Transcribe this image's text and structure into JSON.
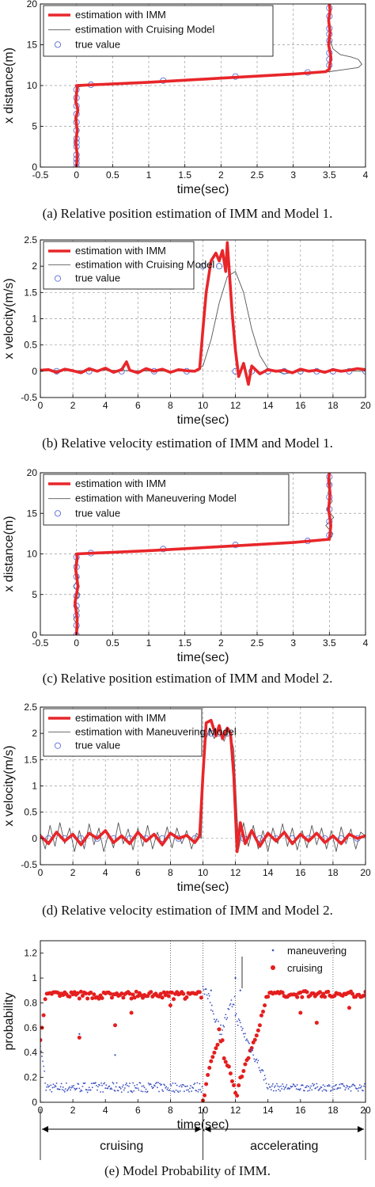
{
  "chart_data": [
    {
      "type": "line",
      "caption": "(a) Relative position estimation of IMM and Model 1.",
      "xlabel": "time(sec)",
      "ylabel": "x distance(m)",
      "xlim": [
        -0.5,
        4
      ],
      "ylim": [
        0,
        20
      ],
      "xticks": [
        -0.5,
        0,
        0.5,
        1,
        1.5,
        2,
        2.5,
        3,
        3.5,
        4
      ],
      "yticks": [
        0,
        5,
        10,
        15,
        20
      ],
      "grid": true,
      "legend": "top-left",
      "series": [
        {
          "name": "estimation with IMM",
          "color": "#e8262a",
          "style": "thick-line",
          "x": [
            0,
            0.01,
            -0.01,
            0.01,
            -0.01,
            0.02,
            -0.01,
            0.0,
            0.01,
            0.0,
            1.0,
            2.0,
            3.0,
            3.45,
            3.5,
            3.52,
            3.49,
            3.51,
            3.49,
            3.51,
            3.5
          ],
          "y": [
            0,
            1.5,
            3,
            4.5,
            6,
            7,
            8,
            9,
            9.8,
            10.0,
            10.4,
            10.9,
            11.4,
            11.7,
            12.0,
            13.5,
            15,
            16.5,
            18,
            19.2,
            20
          ]
        },
        {
          "name": "estimation with Cruising Model",
          "color": "#555555",
          "style": "thin-line",
          "x": [
            0,
            0.01,
            0.0,
            0.2,
            1.0,
            2.0,
            3.0,
            3.5,
            3.7,
            3.9,
            3.95,
            3.9,
            3.8,
            3.65,
            3.55,
            3.5,
            3.5
          ],
          "y": [
            0,
            5,
            9.8,
            10.05,
            10.4,
            10.9,
            11.4,
            11.7,
            11.95,
            12.2,
            12.6,
            13.2,
            13.5,
            13.8,
            14.5,
            16,
            20
          ]
        },
        {
          "name": "true value",
          "color": "#5b6fd6",
          "style": "circle",
          "x": [
            0,
            0,
            0,
            0,
            0,
            0,
            0,
            0,
            0,
            0,
            0,
            0,
            0,
            0.2,
            1.2,
            2.2,
            3.2,
            3.5,
            3.5,
            3.5,
            3.5,
            3.5,
            3.5,
            3.5,
            3.5
          ],
          "y": [
            0,
            1.5,
            3,
            4.5,
            5.5,
            6.5,
            7.5,
            8.5,
            9.5,
            2.5,
            3.5,
            1,
            0.5,
            10.1,
            10.6,
            11.1,
            11.6,
            12.5,
            14,
            15.5,
            17,
            18.5,
            19.5,
            16.3,
            13.2
          ]
        }
      ]
    },
    {
      "type": "line",
      "caption": "(b) Relative velocity estimation of IMM and Model 1.",
      "xlabel": "time(sec)",
      "ylabel": "x velocity(m/s)",
      "xlim": [
        0,
        20
      ],
      "ylim": [
        -0.5,
        2.5
      ],
      "xticks": [
        0,
        2,
        4,
        6,
        8,
        10,
        12,
        14,
        16,
        18,
        20
      ],
      "yticks": [
        -0.5,
        0,
        0.5,
        1,
        1.5,
        2,
        2.5
      ],
      "grid": true,
      "legend": "top-left",
      "series": [
        {
          "name": "estimation with IMM",
          "color": "#e8262a",
          "style": "thick-line",
          "x": [
            0,
            0.5,
            1,
            1.5,
            2,
            2.5,
            3,
            3.5,
            4,
            4.5,
            5,
            5.3,
            5.5,
            6,
            6.5,
            7,
            7.5,
            8,
            8.5,
            9,
            9.5,
            9.8,
            10,
            10.2,
            10.5,
            10.8,
            11,
            11.2,
            11.4,
            11.5,
            11.6,
            11.8,
            12,
            12.2,
            12.5,
            12.8,
            13,
            13.5,
            14,
            14.5,
            15,
            15.5,
            16,
            16.5,
            17,
            17.5,
            18,
            18.5,
            19,
            19.5,
            20
          ],
          "y": [
            0.02,
            0.03,
            -0.02,
            0.04,
            0.01,
            -0.03,
            0.05,
            0.0,
            0.06,
            -0.02,
            0.03,
            0.18,
            0.02,
            -0.03,
            0.05,
            0.0,
            0.04,
            -0.02,
            0.03,
            0.01,
            0.0,
            0.05,
            0.8,
            1.5,
            2.1,
            2.25,
            2.1,
            2.3,
            1.9,
            2.45,
            2.0,
            1.1,
            0.4,
            -0.1,
            0.15,
            -0.25,
            0.1,
            -0.05,
            0.03,
            0.0,
            0.02,
            -0.03,
            0.04,
            0.0,
            0.02,
            -0.02,
            0.03,
            0.0,
            0.02,
            0.05,
            0.03
          ]
        },
        {
          "name": "estimation with Cruising Model",
          "color": "#555555",
          "style": "thin-line",
          "x": [
            0,
            2,
            4,
            6,
            8,
            9.5,
            10,
            10.5,
            11,
            11.5,
            12,
            12.5,
            13,
            13.5,
            14,
            15,
            16,
            18,
            20
          ],
          "y": [
            0.02,
            0.01,
            0.02,
            0.01,
            0.0,
            0.02,
            0.1,
            0.6,
            1.3,
            1.8,
            1.9,
            1.5,
            0.8,
            0.3,
            0.05,
            -0.05,
            0.0,
            0.01,
            0.0
          ]
        },
        {
          "name": "true value",
          "color": "#5b6fd6",
          "style": "circle",
          "x": [
            1,
            3,
            5,
            7,
            9,
            10,
            11,
            12,
            13,
            14,
            15,
            16,
            17,
            18,
            19,
            20
          ],
          "y": [
            0,
            0,
            0,
            0,
            0,
            2,
            2,
            0,
            0,
            0,
            0,
            0,
            0,
            0,
            0,
            0
          ]
        }
      ]
    },
    {
      "type": "line",
      "caption": "(c) Relative position estimation of IMM and Model 2.",
      "xlabel": "time(sec)",
      "ylabel": "x distance(m)",
      "xlim": [
        -0.5,
        4
      ],
      "ylim": [
        0,
        20
      ],
      "xticks": [
        -0.5,
        0,
        0.5,
        1,
        1.5,
        2,
        2.5,
        3,
        3.5,
        4
      ],
      "yticks": [
        0,
        5,
        10,
        15,
        20
      ],
      "grid": true,
      "legend": "top-left",
      "series": [
        {
          "name": "estimation with IMM",
          "color": "#e8262a",
          "style": "thick-line",
          "x": [
            0,
            0.01,
            -0.02,
            0.02,
            -0.01,
            0.01,
            0.0,
            1.0,
            2.0,
            3.0,
            3.5,
            3.52,
            3.49,
            3.51,
            3.49,
            3.5
          ],
          "y": [
            0,
            2,
            4,
            6,
            8,
            9.5,
            10.0,
            10.4,
            10.9,
            11.4,
            11.8,
            13.5,
            15.5,
            17.5,
            19,
            20
          ]
        },
        {
          "name": "estimation with Maneuvering Model",
          "color": "#555555",
          "style": "thin-line",
          "x": [
            0,
            0.03,
            -0.04,
            0.04,
            -0.03,
            0.05,
            -0.04,
            0.03,
            -0.02,
            0.0,
            1.0,
            2.0,
            3.0,
            3.5,
            3.55,
            3.45,
            3.56,
            3.46,
            3.54,
            3.48,
            3.52,
            3.5
          ],
          "y": [
            0,
            1,
            2,
            3,
            4,
            5,
            6,
            7,
            8.5,
            10.0,
            10.4,
            10.9,
            11.4,
            11.8,
            12.5,
            13.5,
            14.5,
            15.5,
            16.5,
            17.5,
            18.5,
            20
          ]
        },
        {
          "name": "true value",
          "color": "#5b6fd6",
          "style": "circle",
          "x": [
            0,
            0,
            0,
            0,
            0,
            0,
            0,
            0,
            0,
            0.2,
            1.2,
            2.2,
            3.2,
            3.5,
            3.5,
            3.5,
            3.5,
            3.5,
            3.5
          ],
          "y": [
            0,
            1.2,
            2.4,
            3.6,
            4.8,
            6,
            7.2,
            8.4,
            9.6,
            10.1,
            10.6,
            11.1,
            11.6,
            12.3,
            14,
            15.5,
            17,
            18.5,
            19.5
          ]
        }
      ]
    },
    {
      "type": "line",
      "caption": "(d) Relative velocity estimation of IMM and Model 2.",
      "xlabel": "time(sec)",
      "ylabel": "x velocity(m/s)",
      "xlim": [
        0,
        20
      ],
      "ylim": [
        -0.5,
        2.5
      ],
      "xticks": [
        0,
        2,
        4,
        6,
        8,
        10,
        12,
        14,
        16,
        18,
        20
      ],
      "yticks": [
        -0.5,
        0,
        0.5,
        1,
        1.5,
        2,
        2.5
      ],
      "grid": true,
      "legend": "top-left",
      "series": [
        {
          "name": "estimation with IMM",
          "color": "#e8262a",
          "style": "thick-line",
          "x": [
            0,
            0.5,
            1,
            1.5,
            2,
            2.5,
            3,
            3.5,
            4,
            4.5,
            5,
            5.5,
            6,
            6.5,
            7,
            7.5,
            8,
            8.5,
            9,
            9.5,
            9.8,
            10,
            10.2,
            10.5,
            10.8,
            11,
            11.2,
            11.5,
            11.7,
            11.9,
            12.1,
            12.3,
            12.6,
            13,
            13.5,
            14,
            14.5,
            15,
            15.5,
            16,
            16.5,
            17,
            17.5,
            18,
            18.5,
            19,
            19.5,
            20
          ],
          "y": [
            0.05,
            -0.1,
            0.12,
            -0.05,
            0.08,
            -0.12,
            0.1,
            0.0,
            0.15,
            -0.08,
            0.05,
            -0.1,
            0.12,
            -0.05,
            0.08,
            -0.12,
            0.1,
            0.0,
            0.06,
            -0.08,
            0.05,
            1.2,
            2.2,
            2.25,
            1.95,
            2.15,
            1.9,
            2.1,
            2.0,
            1.2,
            -0.25,
            0.3,
            -0.1,
            0.15,
            -0.15,
            0.1,
            -0.05,
            0.12,
            -0.1,
            0.08,
            -0.05,
            0.1,
            -0.08,
            0.05,
            -0.1,
            0.08,
            0.0,
            0.05
          ]
        },
        {
          "name": "estimation with Maneuvering Model",
          "color": "#555555",
          "style": "thin-line",
          "x": [
            0,
            0.3,
            0.6,
            0.9,
            1.2,
            1.5,
            1.8,
            2.1,
            2.4,
            2.7,
            3,
            3.3,
            3.6,
            3.9,
            4.2,
            4.5,
            4.8,
            5.1,
            5.4,
            5.7,
            6,
            6.3,
            6.6,
            6.9,
            7.2,
            7.5,
            7.8,
            8.1,
            8.4,
            8.7,
            9,
            9.3,
            9.6,
            9.9,
            10.1,
            10.4,
            10.7,
            11,
            11.3,
            11.6,
            11.9,
            12.2,
            12.5,
            12.8,
            13.1,
            13.4,
            13.7,
            14,
            14.3,
            14.6,
            14.9,
            15.2,
            15.5,
            15.8,
            16.1,
            16.4,
            16.7,
            17,
            17.3,
            17.6,
            17.9,
            18.2,
            18.5,
            18.8,
            19.1,
            19.4,
            19.7,
            20
          ],
          "y": [
            0.1,
            -0.2,
            0.25,
            -0.15,
            0.3,
            -0.1,
            0.2,
            -0.25,
            0.15,
            -0.2,
            0.28,
            -0.12,
            0.2,
            -0.25,
            0.1,
            -0.18,
            0.3,
            -0.1,
            0.18,
            -0.22,
            0.2,
            -0.15,
            0.25,
            -0.2,
            0.12,
            -0.15,
            0.22,
            -0.18,
            0.2,
            -0.1,
            0.15,
            -0.2,
            0.1,
            0.0,
            1.8,
            2.1,
            1.9,
            2.15,
            1.85,
            2.1,
            1.7,
            -0.2,
            0.3,
            -0.15,
            0.25,
            -0.2,
            0.15,
            -0.25,
            0.2,
            -0.1,
            0.28,
            -0.15,
            0.2,
            -0.22,
            0.15,
            -0.18,
            0.25,
            -0.12,
            0.2,
            -0.2,
            0.15,
            -0.25,
            0.22,
            -0.1,
            0.18,
            -0.2,
            0.12,
            0.05
          ]
        },
        {
          "name": "true value",
          "color": "#5b6fd6",
          "style": "circle",
          "x": [
            0.5,
            1.5,
            2.5,
            3.5,
            4.5,
            5.5,
            6.5,
            7.5,
            8.5,
            9.5,
            10,
            10.5,
            11,
            11.5,
            12.5,
            13.5,
            14.5,
            15.5,
            16.5,
            17.5,
            18.5,
            19.5
          ],
          "y": [
            0,
            0,
            0,
            0,
            0,
            0,
            0,
            0,
            0,
            0,
            2,
            2,
            2,
            2,
            0,
            0,
            0,
            0,
            0,
            0,
            0,
            0
          ]
        }
      ]
    },
    {
      "type": "scatter",
      "caption": "(e) Model Probability of IMM.",
      "xlabel": "time(sec)",
      "ylabel": "probability",
      "xlim": [
        0,
        20
      ],
      "ylim": [
        0,
        1.3
      ],
      "xticks": [
        0,
        2,
        4,
        6,
        8,
        10,
        12,
        14,
        16,
        18,
        20
      ],
      "yticks": [
        0,
        0.2,
        0.4,
        0.6,
        0.8,
        1,
        1.2
      ],
      "grid": false,
      "vlines": [
        8,
        10,
        12,
        18
      ],
      "legend": "top-right",
      "phases": [
        {
          "label": "cruising",
          "from": 0,
          "to": 10
        },
        {
          "label": "accelerating",
          "from": 10,
          "to": 20
        }
      ],
      "series": [
        {
          "name": "maneuvering",
          "color": "#3a4fc0",
          "style": "dot"
        },
        {
          "name": "cruising",
          "color": "#e41e1e",
          "style": "dot"
        }
      ]
    }
  ]
}
